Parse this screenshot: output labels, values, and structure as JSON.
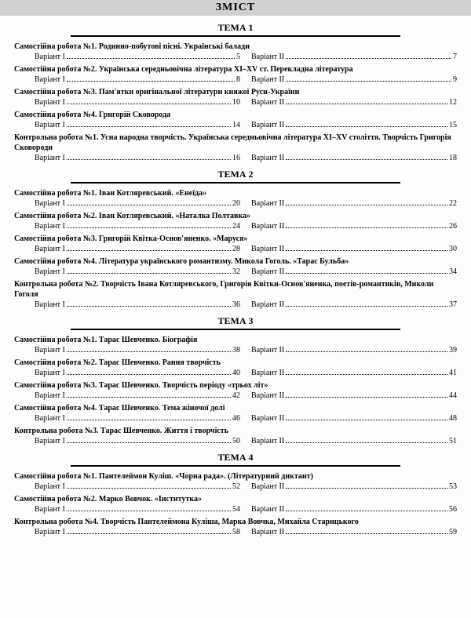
{
  "title": "ЗМІСТ",
  "variant1_label": "Варіант І",
  "variant2_label": "Варіант ІІ",
  "themes": [
    {
      "name": "ТЕМА 1",
      "entries": [
        {
          "title": "Самостійна робота №1. Родинно-побутові пісні. Українські балади",
          "p1": "5",
          "p2": "7"
        },
        {
          "title": "Самостійна робота №2. Українська середньовічна література XI–XV ст. Перекладна література",
          "p1": "8",
          "p2": "9"
        },
        {
          "title": "Самостійна робота №3. Пам'ятки оригінальної літератури княжої Руси-України",
          "p1": "10",
          "p2": "12"
        },
        {
          "title": "Самостійна робота №4. Григорій Сковорода",
          "p1": "14",
          "p2": "15"
        },
        {
          "title": "Контрольна робота №1. Усна народна творчість. Українська середньовічна література XI–XV століття. Творчість Григорія Сковороди",
          "p1": "16",
          "p2": "18"
        }
      ]
    },
    {
      "name": "ТЕМА 2",
      "entries": [
        {
          "title": "Самостійна робота №1. Іван Котляревський. «Енеїда»",
          "p1": "20",
          "p2": "22"
        },
        {
          "title": "Самостійна робота №2. Іван Котляревський. «Наталка Полтавка»",
          "p1": "24",
          "p2": "26"
        },
        {
          "title": "Самостійна робота №3. Григорій Квітка-Основ'яненко. «Маруся»",
          "p1": "28",
          "p2": "30"
        },
        {
          "title": "Самостійна робота №4. Література українського романтизму. Микола Гоголь. «Тарас Бульба»",
          "p1": "32",
          "p2": "34"
        },
        {
          "title": "Контрольна робота №2. Творчість Івана Котляревського, Григорія Квітки-Основ'яненка, поетів-романтиків, Миколи Гоголя",
          "p1": "36",
          "p2": "37"
        }
      ]
    },
    {
      "name": "ТЕМА 3",
      "entries": [
        {
          "title": "Самостійна робота №1. Тарас Шевченко. Біографія",
          "p1": "38",
          "p2": "39"
        },
        {
          "title": "Самостійна робота №2. Тарас Шевченко. Рання творчість",
          "p1": "40",
          "p2": "41"
        },
        {
          "title": "Самостійна робота №3. Тарас Шевченко. Творчість періоду «трьох літ»",
          "p1": "42",
          "p2": "44"
        },
        {
          "title": "Самостійна робота №4. Тарас Шевченко. Тема жіночої долі",
          "p1": "46",
          "p2": "48"
        },
        {
          "title": "Контрольна робота №3. Тарас Шевченко. Життя і творчість",
          "p1": "50",
          "p2": "51"
        }
      ]
    },
    {
      "name": "ТЕМА 4",
      "entries": [
        {
          "title": "Самостійна робота №1. Пантелеймон Куліш. «Чорна рада». (Літературний диктант)",
          "p1": "52",
          "p2": "53"
        },
        {
          "title": "Самостійна робота №2. Марко Вовчок. «Інститутка»",
          "p1": "54",
          "p2": "56"
        },
        {
          "title": "Контрольна робота №4. Творчість Пантелеймона Куліша, Марка Вовчка, Михайла Старицького",
          "p1": "58",
          "p2": "59"
        }
      ]
    }
  ]
}
